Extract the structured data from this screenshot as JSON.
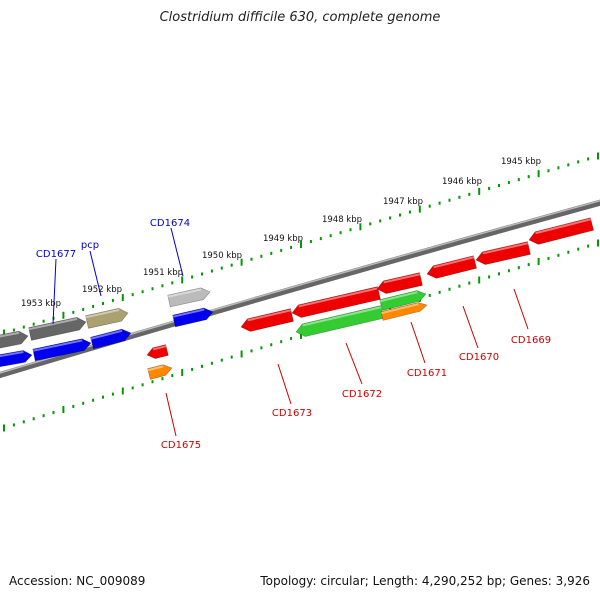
{
  "title": "Clostridium difficile 630, complete genome",
  "footer": {
    "accession": "Accession: NC_009089",
    "summary": "Topology: circular; Length: 4,290,252 bp; Genes: 3,926"
  },
  "colors": {
    "red": "#ee0000",
    "green": "#33cc33",
    "orange": "#ff8800",
    "blue": "#0000ee",
    "gray": "#666666",
    "light_gray": "#bbbbbb",
    "olive": "#aaa070",
    "tick_green": "#009900",
    "red_label": "#cc0000",
    "blue_label": "#0000cc"
  },
  "kbp_ticks": [
    {
      "label": "1945 kbp"
    },
    {
      "label": "1946 kbp"
    },
    {
      "label": "1947 kbp"
    },
    {
      "label": "1948 kbp"
    },
    {
      "label": "1949 kbp"
    },
    {
      "label": "1950 kbp"
    },
    {
      "label": "1951 kbp"
    },
    {
      "label": "1952 kbp"
    },
    {
      "label": "1953 kbp"
    }
  ],
  "gene_labels": [
    {
      "text": "CD1677",
      "color": "blue"
    },
    {
      "text": "pcp",
      "color": "blue"
    },
    {
      "text": "CD1674",
      "color": "blue"
    },
    {
      "text": "CD1675",
      "color": "red"
    },
    {
      "text": "CD1673",
      "color": "red"
    },
    {
      "text": "CD1672",
      "color": "red"
    },
    {
      "text": "CD1671",
      "color": "red"
    },
    {
      "text": "CD1670",
      "color": "red"
    },
    {
      "text": "CD1669",
      "color": "red"
    }
  ]
}
